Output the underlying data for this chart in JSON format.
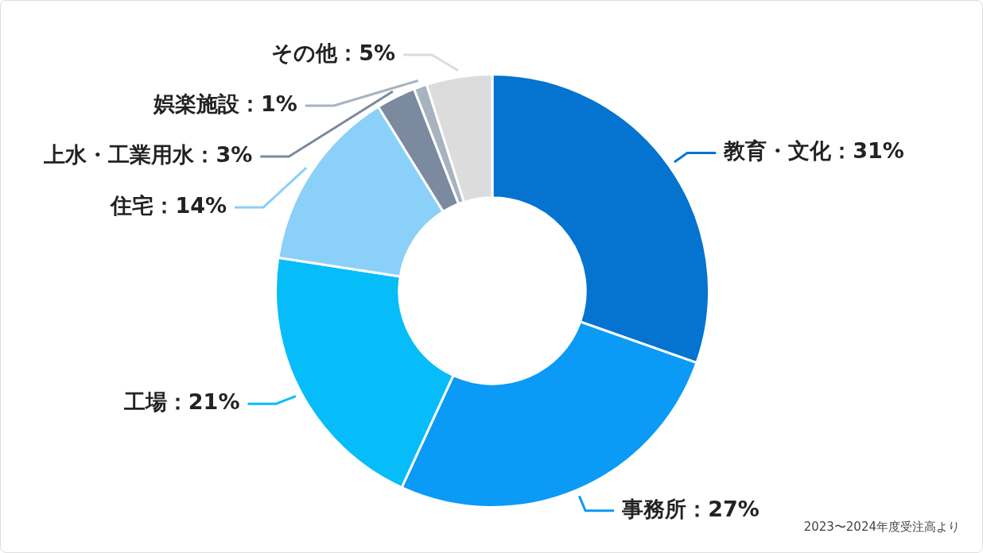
{
  "chart_data": {
    "type": "donut",
    "categories": [
      "教育・文化",
      "事務所",
      "工場",
      "住宅",
      "上水・工業用水",
      "娯楽施設",
      "その他"
    ],
    "values": [
      31,
      27,
      21,
      14,
      3,
      1,
      5
    ],
    "value_labels": [
      "31%",
      "27%",
      "21%",
      "14%",
      "3%",
      "1%",
      "5%"
    ],
    "colors": [
      "#0573d0",
      "#0b9af5",
      "#06bdf9",
      "#8ad0f9",
      "#7b8a9e",
      "#a8b3c0",
      "#dcdcdc"
    ],
    "annotations": [
      "2023〜2024年度受注高より"
    ],
    "legend": false
  }
}
